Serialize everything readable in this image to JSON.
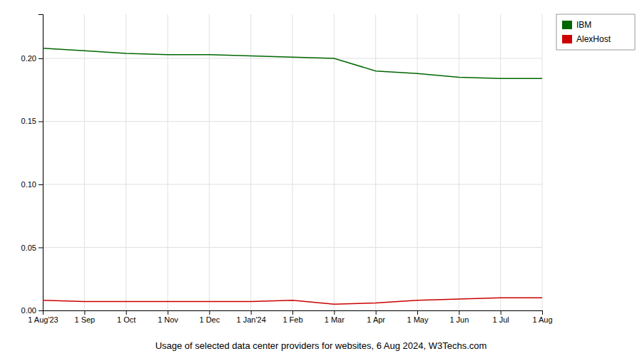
{
  "chart_data": {
    "type": "line",
    "title": "Usage of selected data center providers for websites, 6 Aug 2024, W3Techs.com",
    "categories": [
      "1 Aug'23",
      "1 Sep",
      "1 Oct",
      "1 Nov",
      "1 Dec",
      "1 Jan'24",
      "1 Feb",
      "1 Mar",
      "1 Apr",
      "1 May",
      "1 Jun",
      "1 Jul",
      "1 Aug"
    ],
    "series": [
      {
        "name": "IBM",
        "color": "#006600",
        "values": [
          0.208,
          0.206,
          0.204,
          0.203,
          0.203,
          0.202,
          0.201,
          0.2,
          0.19,
          0.188,
          0.185,
          0.184,
          0.184
        ]
      },
      {
        "name": "AlexHost",
        "color": "#cc0000",
        "values": [
          0.008,
          0.007,
          0.007,
          0.007,
          0.007,
          0.007,
          0.008,
          0.005,
          0.006,
          0.008,
          0.009,
          0.01,
          0.01
        ]
      }
    ],
    "ylim": [
      0,
      0.235
    ],
    "yticks": [
      {
        "value": 0,
        "label": "0.00"
      },
      0.05,
      {
        "value": 0.1,
        "label": "0.10"
      },
      0.15,
      {
        "value": 0.2,
        "label": "0.20"
      }
    ],
    "grid": true,
    "legend": "upper right"
  }
}
